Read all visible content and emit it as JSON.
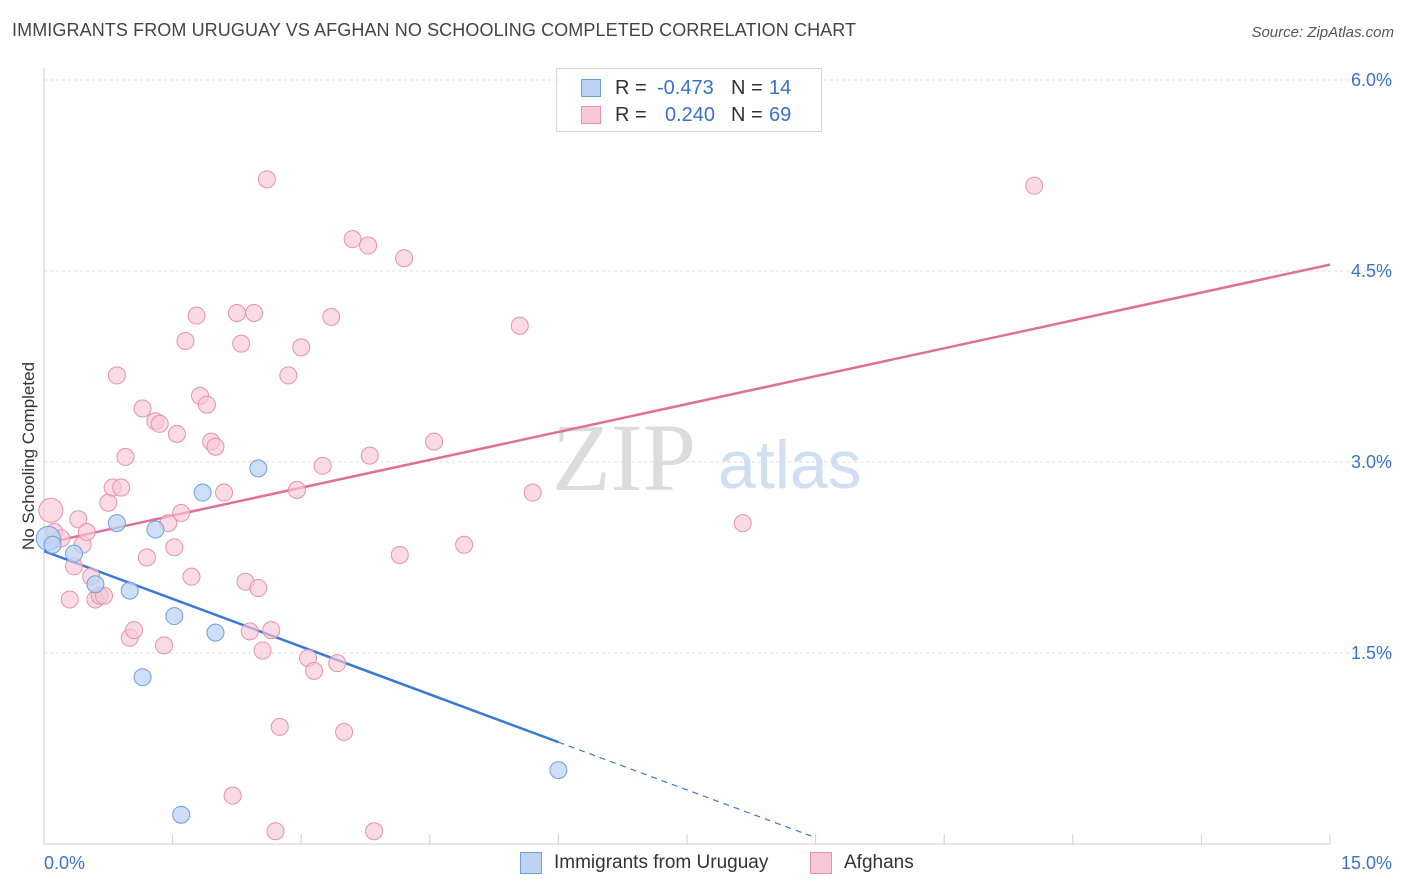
{
  "title": "IMMIGRANTS FROM URUGUAY VS AFGHAN NO SCHOOLING COMPLETED CORRELATION CHART",
  "source": "Source: ZipAtlas.com",
  "watermark": {
    "zip": "ZIP",
    "atlas": "atlas"
  },
  "colors": {
    "uruguay_fill": "#bcd3f3",
    "uruguay_stroke": "#6e9fdc",
    "uruguay_line": "#3a78d4",
    "afghan_fill": "#f8c8d6",
    "afghan_stroke": "#e592ad",
    "afghan_line": "#e07097",
    "tick_label": "#3b73c4",
    "grid": "#dddddd"
  },
  "legend_top": [
    {
      "r_label": "R =",
      "r_value": "-0.473",
      "n_label": "N =",
      "n_value": "14"
    },
    {
      "r_label": "R =",
      "r_value": "0.240",
      "n_label": "N =",
      "n_value": "69"
    }
  ],
  "chart_data": {
    "type": "scatter",
    "title": "IMMIGRANTS FROM URUGUAY VS AFGHAN NO SCHOOLING COMPLETED CORRELATION CHART",
    "xlabel": "",
    "ylabel": "No Schooling Completed",
    "xlim": [
      0,
      15
    ],
    "ylim": [
      0,
      6
    ],
    "x_tick_labels": [
      "0.0%",
      "15.0%"
    ],
    "y_ticks": [
      1.5,
      3.0,
      4.5,
      6.0
    ],
    "y_tick_labels": [
      "1.5%",
      "3.0%",
      "4.5%",
      "6.0%"
    ],
    "grid": true,
    "series": [
      {
        "name": "Immigrants from Uruguay",
        "r": -0.473,
        "n": 14,
        "trend": {
          "x0": 0.0,
          "y0": 2.3,
          "x1": 6.0,
          "y1": 0.8,
          "dashed_to_x": 9.0
        },
        "points": [
          [
            0.05,
            2.4
          ],
          [
            0.1,
            2.35
          ],
          [
            0.35,
            2.28
          ],
          [
            0.6,
            2.04
          ],
          [
            0.85,
            2.52
          ],
          [
            1.0,
            1.99
          ],
          [
            1.15,
            1.31
          ],
          [
            1.3,
            2.47
          ],
          [
            1.52,
            1.79
          ],
          [
            1.6,
            0.23
          ],
          [
            1.85,
            2.76
          ],
          [
            2.0,
            1.66
          ],
          [
            2.5,
            2.95
          ],
          [
            6.0,
            0.58
          ]
        ]
      },
      {
        "name": "Afghans",
        "r": 0.24,
        "n": 69,
        "trend": {
          "x0": 0.0,
          "y0": 2.36,
          "x1": 15.0,
          "y1": 4.55
        },
        "points": [
          [
            0.08,
            2.62
          ],
          [
            0.12,
            2.45
          ],
          [
            0.2,
            2.4
          ],
          [
            0.3,
            1.92
          ],
          [
            0.35,
            2.18
          ],
          [
            0.4,
            2.55
          ],
          [
            0.45,
            2.35
          ],
          [
            0.5,
            2.45
          ],
          [
            0.55,
            2.1
          ],
          [
            0.6,
            1.92
          ],
          [
            0.65,
            1.95
          ],
          [
            0.7,
            1.95
          ],
          [
            0.75,
            2.68
          ],
          [
            0.8,
            2.8
          ],
          [
            0.85,
            3.68
          ],
          [
            0.9,
            2.8
          ],
          [
            0.95,
            3.04
          ],
          [
            1.0,
            1.62
          ],
          [
            1.05,
            1.68
          ],
          [
            1.15,
            3.42
          ],
          [
            1.2,
            2.25
          ],
          [
            1.3,
            3.32
          ],
          [
            1.35,
            3.3
          ],
          [
            1.4,
            1.56
          ],
          [
            1.45,
            2.52
          ],
          [
            1.52,
            2.33
          ],
          [
            1.55,
            3.22
          ],
          [
            1.6,
            2.6
          ],
          [
            1.65,
            3.95
          ],
          [
            1.72,
            2.1
          ],
          [
            1.78,
            4.15
          ],
          [
            1.82,
            3.52
          ],
          [
            1.9,
            3.45
          ],
          [
            1.95,
            3.16
          ],
          [
            2.0,
            3.12
          ],
          [
            2.1,
            2.76
          ],
          [
            2.2,
            0.38
          ],
          [
            2.25,
            4.17
          ],
          [
            2.3,
            3.93
          ],
          [
            2.35,
            2.06
          ],
          [
            2.4,
            1.67
          ],
          [
            2.45,
            4.17
          ],
          [
            2.5,
            2.01
          ],
          [
            2.55,
            1.52
          ],
          [
            2.6,
            5.22
          ],
          [
            2.65,
            1.68
          ],
          [
            2.7,
            0.1
          ],
          [
            2.75,
            0.92
          ],
          [
            2.85,
            3.68
          ],
          [
            2.95,
            2.78
          ],
          [
            3.0,
            3.9
          ],
          [
            3.08,
            1.46
          ],
          [
            3.15,
            1.36
          ],
          [
            3.25,
            2.97
          ],
          [
            3.35,
            4.14
          ],
          [
            3.42,
            1.42
          ],
          [
            3.5,
            0.88
          ],
          [
            3.6,
            4.75
          ],
          [
            3.78,
            4.7
          ],
          [
            3.8,
            3.05
          ],
          [
            3.85,
            0.1
          ],
          [
            4.15,
            2.27
          ],
          [
            4.2,
            4.6
          ],
          [
            4.55,
            3.16
          ],
          [
            4.9,
            2.35
          ],
          [
            5.55,
            4.07
          ],
          [
            5.7,
            2.76
          ],
          [
            8.15,
            2.52
          ],
          [
            11.55,
            5.17
          ]
        ]
      }
    ]
  },
  "legend_bottom": [
    "Immigrants from Uruguay",
    "Afghans"
  ]
}
